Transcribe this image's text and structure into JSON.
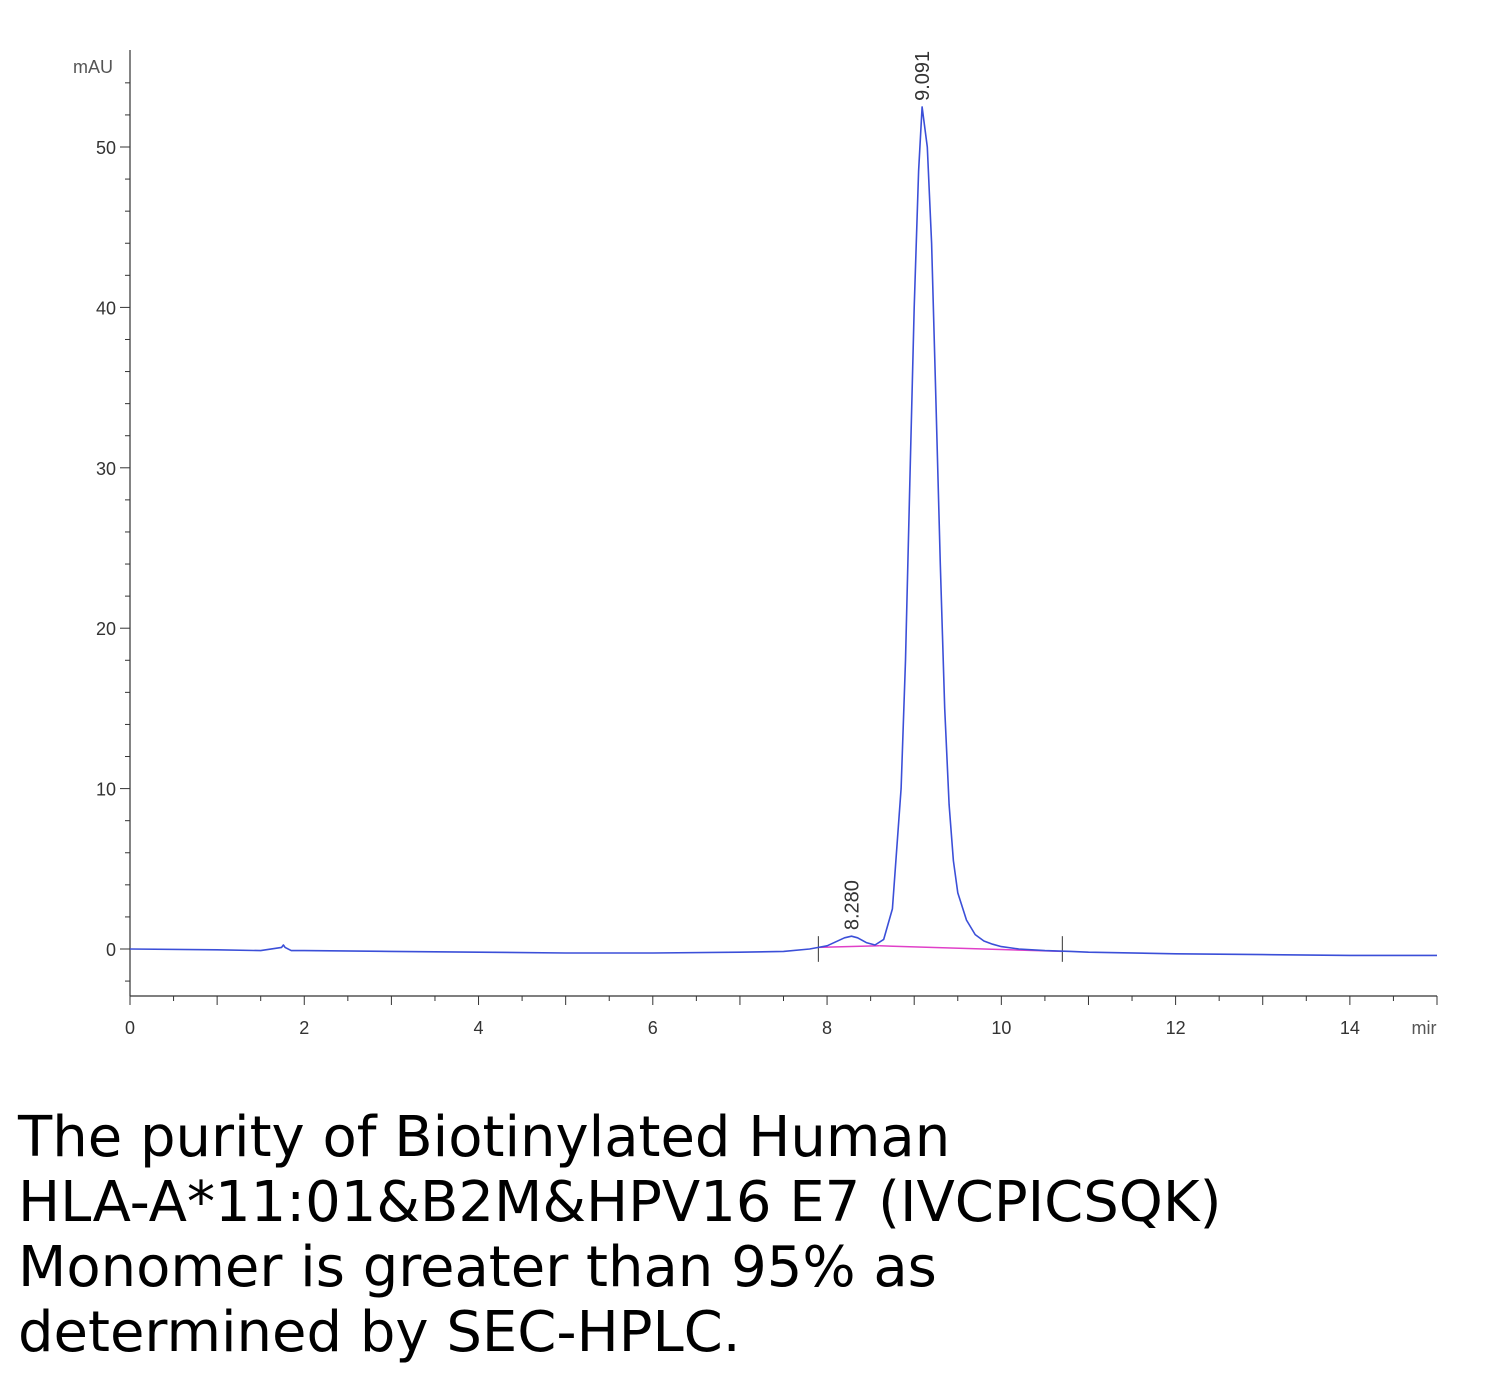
{
  "chart_data": {
    "type": "line",
    "xlabel": "mir",
    "ylabel": "mAU",
    "xlim": [
      0,
      15
    ],
    "ylim": [
      -3,
      55
    ],
    "x_ticks": [
      "0",
      "2",
      "4",
      "6",
      "8",
      "10",
      "12",
      "14"
    ],
    "y_ticks": [
      "0",
      "10",
      "20",
      "30",
      "40",
      "50"
    ],
    "grid": false,
    "colors": {
      "trace": "#3b4fd8",
      "baseline": "#e040c8",
      "axis": "#333333"
    },
    "peaks": [
      {
        "label": "8.280",
        "x": 8.28,
        "y": 0.8
      },
      {
        "label": "9.091",
        "x": 9.091,
        "y": 52.5
      }
    ],
    "series": [
      {
        "x": [
          0,
          1,
          1.5,
          1.74,
          1.76,
          1.78,
          1.85,
          2,
          3,
          4,
          5,
          6,
          7,
          7.5,
          7.8,
          7.9,
          8.0,
          8.1,
          8.2,
          8.28,
          8.35,
          8.45,
          8.55,
          8.65,
          8.75,
          8.85,
          8.9,
          8.95,
          9.0,
          9.05,
          9.091,
          9.15,
          9.2,
          9.25,
          9.3,
          9.35,
          9.4,
          9.45,
          9.5,
          9.6,
          9.7,
          9.8,
          9.9,
          10.0,
          10.2,
          10.5,
          10.8,
          11,
          12,
          13,
          14,
          15
        ],
        "y": [
          0.0,
          -0.05,
          -0.1,
          0.1,
          0.25,
          0.1,
          -0.1,
          -0.1,
          -0.15,
          -0.2,
          -0.25,
          -0.25,
          -0.2,
          -0.15,
          0.0,
          0.1,
          0.2,
          0.45,
          0.7,
          0.8,
          0.7,
          0.4,
          0.25,
          0.6,
          2.5,
          10.0,
          18.0,
          29.0,
          40.0,
          48.5,
          52.5,
          50.0,
          44.0,
          34.0,
          24.0,
          15.0,
          9.0,
          5.5,
          3.5,
          1.8,
          0.9,
          0.5,
          0.3,
          0.15,
          0.0,
          -0.1,
          -0.15,
          -0.2,
          -0.3,
          -0.35,
          -0.4,
          -0.4
        ]
      }
    ],
    "integration_baselines": [
      {
        "x": [
          7.9,
          8.6
        ],
        "y": [
          0.1,
          0.2
        ]
      },
      {
        "x": [
          8.6,
          10.7
        ],
        "y": [
          0.2,
          -0.15
        ]
      }
    ]
  },
  "caption": {
    "lines": [
      "The purity of Biotinylated Human",
      "HLA-A*11:01&B2M&HPV16 E7 (IVCPICSQK)",
      "Monomer is greater than 95% as",
      "determined by SEC-HPLC."
    ]
  }
}
